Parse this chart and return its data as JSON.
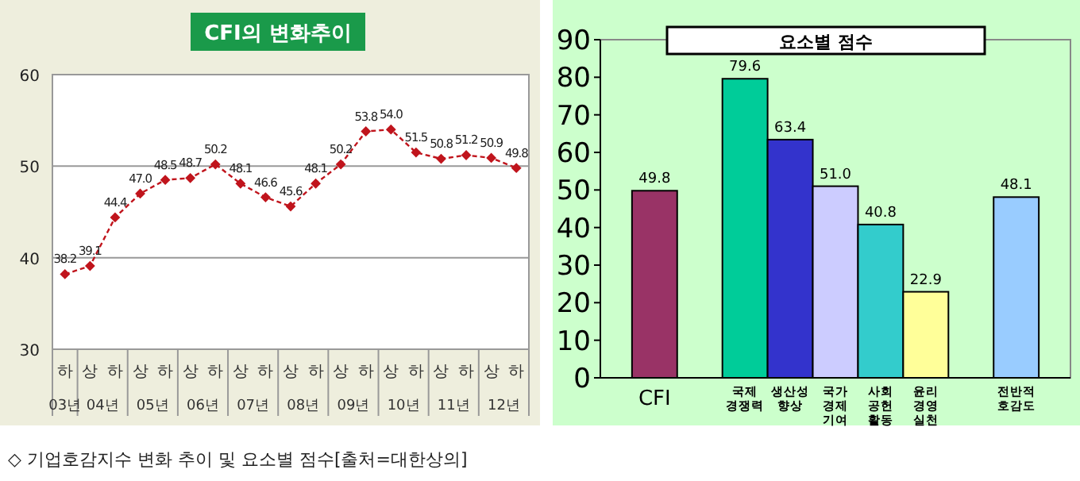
{
  "chart_data": [
    {
      "type": "line",
      "title": "CFI의 변화추이",
      "categories": [
        "하",
        "상",
        "하",
        "상",
        "하",
        "상",
        "하",
        "상",
        "하",
        "상",
        "하",
        "상",
        "하",
        "상",
        "하",
        "상",
        "하",
        "상",
        "하"
      ],
      "series": [
        {
          "color": "#c0141c",
          "values": [
            38.2,
            39.1,
            44.4,
            47.0,
            48.5,
            48.7,
            50.2,
            48.1,
            46.6,
            45.6,
            48.1,
            50.2,
            53.8,
            54.0,
            51.5,
            50.8,
            51.2,
            50.9,
            49.8
          ]
        }
      ],
      "value_labels": [
        "38.2",
        "39.1",
        "44.4",
        "47.0",
        "48.5",
        "48.7",
        "50.2",
        "48.1",
        "46.6",
        "45.6",
        "48.1",
        "50.2",
        "53.8",
        "54.0",
        "51.5",
        "50.8",
        "51.2",
        "50.9",
        "49.8"
      ],
      "ylim": [
        30,
        60
      ],
      "yticks": [
        30,
        40,
        50,
        60
      ],
      "grid": "y",
      "marker": "diamond",
      "line_style": "dashed",
      "annotations": [
        "03년",
        "04년",
        "05년",
        "06년",
        "07년",
        "08년",
        "09년",
        "10년",
        "11년",
        "12년",
        "◇ 기업호감지수 변화 추이 및 요소별 점수[출처=대한상의]"
      ]
    },
    {
      "type": "bar",
      "title": "요소별 점수",
      "categories": [
        "CFI",
        null,
        "국제 경쟁력",
        "생산성 향상",
        "국가 경제 기여",
        "사회 공헌 활동",
        "윤리 경영 실천",
        null,
        "전반적 호감도"
      ],
      "values": [
        49.8,
        null,
        79.6,
        63.4,
        51.0,
        40.8,
        22.9,
        null,
        48.1
      ],
      "colors": [
        "#993366",
        null,
        "#00cc99",
        "#3333cc",
        "#ccccff",
        "#33cccc",
        "#ffff99",
        null,
        "#99ccff"
      ],
      "value_labels": [
        "49.8",
        null,
        "79.6",
        "63.4",
        "51.0",
        "40.8",
        "22.9",
        null,
        "48.1"
      ],
      "ylim": [
        0,
        90
      ],
      "yticks": [
        0,
        10,
        20,
        30,
        40,
        50,
        60,
        70,
        80,
        90
      ],
      "grid": false
    }
  ]
}
